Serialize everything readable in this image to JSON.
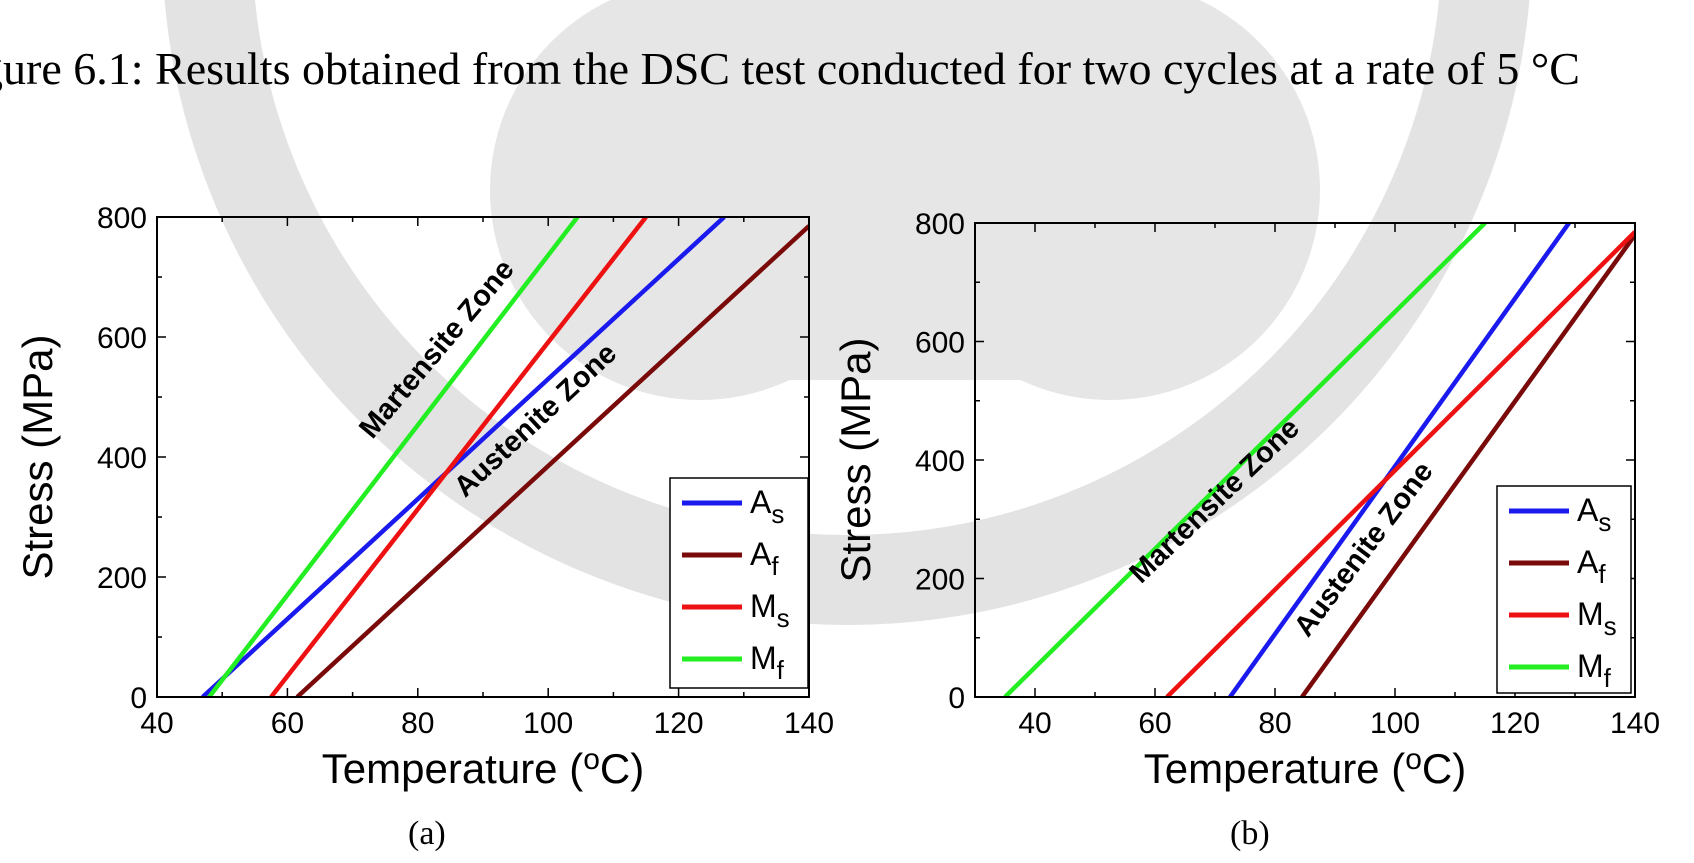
{
  "caption": "gure 6.1: Results obtained from the DSC test conducted for two cycles at a rate of 5 °C",
  "colors": {
    "As": "#1a1aee",
    "Af": "#7a0a0a",
    "Ms": "#ee1111",
    "Mf": "#22ee22",
    "watermark": "#d9d9d9"
  },
  "chart_data": [
    {
      "type": "line",
      "label": "(a)",
      "xlabel": "Temperature (",
      "xlabel_sup": "o",
      "xlabel_end": "C)",
      "ylabel": "Stress (MPa)",
      "xlim": [
        40,
        140
      ],
      "ylim": [
        0,
        800
      ],
      "xticks": [
        "40",
        "60",
        "80",
        "100",
        "120",
        "140"
      ],
      "yticks": [
        "0",
        "200",
        "400",
        "600",
        "800"
      ],
      "series": [
        {
          "name": "A",
          "sub": "s",
          "color": "#1a1aee",
          "x": [
            47,
            127
          ],
          "y": [
            0,
            800
          ]
        },
        {
          "name": "A",
          "sub": "f",
          "color": "#7a0a0a",
          "x": [
            61.5,
            140
          ],
          "y": [
            0,
            785
          ]
        },
        {
          "name": "M",
          "sub": "s",
          "color": "#ee1111",
          "x": [
            57.5,
            115
          ],
          "y": [
            0,
            800
          ]
        },
        {
          "name": "M",
          "sub": "f",
          "color": "#22ee22",
          "x": [
            48,
            104.5
          ],
          "y": [
            0,
            800
          ]
        }
      ],
      "annotations": [
        {
          "text": "Martensite Zone",
          "x": 84,
          "y": 570,
          "angle": -50
        },
        {
          "text": "Austenite Zone",
          "x": 99,
          "y": 450,
          "angle": -43
        }
      ],
      "legend": "bottom-right"
    },
    {
      "type": "line",
      "label": "(b)",
      "xlabel": "Temperature (",
      "xlabel_sup": "o",
      "xlabel_end": "C)",
      "ylabel": "Stress (MPa)",
      "xlim": [
        30,
        140
      ],
      "ylim": [
        0,
        800
      ],
      "xticks": [
        "40",
        "60",
        "80",
        "100",
        "120",
        "140"
      ],
      "yticks": [
        "0",
        "200",
        "400",
        "600",
        "800"
      ],
      "series": [
        {
          "name": "A",
          "sub": "s",
          "color": "#1a1aee",
          "x": [
            72.5,
            129
          ],
          "y": [
            0,
            800
          ]
        },
        {
          "name": "A",
          "sub": "f",
          "color": "#7a0a0a",
          "x": [
            84.5,
            140
          ],
          "y": [
            0,
            780
          ]
        },
        {
          "name": "M",
          "sub": "s",
          "color": "#ee1111",
          "x": [
            62,
            140
          ],
          "y": [
            0,
            785
          ]
        },
        {
          "name": "M",
          "sub": "f",
          "color": "#22ee22",
          "x": [
            35,
            115
          ],
          "y": [
            0,
            800
          ]
        }
      ],
      "annotations": [
        {
          "text": "Martensite Zone",
          "x": 71,
          "y": 320,
          "angle": -44
        },
        {
          "text": "Austenite Zone",
          "x": 96,
          "y": 240,
          "angle": -53
        }
      ],
      "legend": "bottom-right"
    }
  ]
}
